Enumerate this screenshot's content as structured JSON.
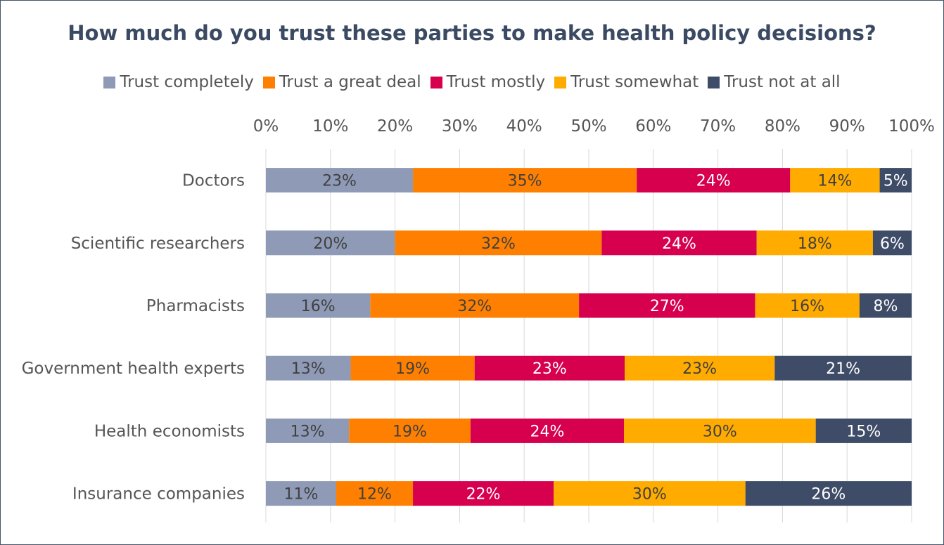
{
  "chart_data": {
    "type": "bar",
    "orientation": "horizontal",
    "stacked": true,
    "title": "How much do you trust these parties to make health policy decisions?",
    "categories": [
      "Doctors",
      "Scientific researchers",
      "Pharmacists",
      "Government health experts",
      "Health economists",
      "Insurance companies"
    ],
    "series": [
      {
        "name": "Trust completely",
        "color": "#8e9ab6",
        "values": [
          23,
          20,
          16,
          13,
          13,
          11
        ]
      },
      {
        "name": "Trust a great deal",
        "color": "#ff8000",
        "values": [
          35,
          32,
          32,
          19,
          19,
          12
        ]
      },
      {
        "name": "Trust mostly",
        "color": "#d6004e",
        "values": [
          24,
          24,
          27,
          23,
          24,
          22
        ]
      },
      {
        "name": "Trust somewhat",
        "color": "#ffab00",
        "values": [
          14,
          18,
          16,
          23,
          30,
          30
        ]
      },
      {
        "name": "Trust not at all",
        "color": "#3e4c67",
        "values": [
          5,
          6,
          8,
          21,
          15,
          26
        ]
      }
    ],
    "data_labels": [
      [
        "23%",
        "35%",
        "24%",
        "14%",
        "5%"
      ],
      [
        "20%",
        "32%",
        "24%",
        "18%",
        "6%"
      ],
      [
        "16%",
        "32%",
        "27%",
        "16%",
        "8%"
      ],
      [
        "13%",
        "19%",
        "23%",
        "23%",
        "21%"
      ],
      [
        "13%",
        "19%",
        "24%",
        "30%",
        "15%"
      ],
      [
        "11%",
        "12%",
        "22%",
        "30%",
        "26%"
      ]
    ],
    "xlim": [
      0,
      100
    ],
    "x_ticks": [
      "0%",
      "10%",
      "20%",
      "30%",
      "40%",
      "50%",
      "60%",
      "70%",
      "80%",
      "90%",
      "100%"
    ],
    "x_axis_position": "top",
    "grid": "vertical",
    "legend_position": "top"
  }
}
